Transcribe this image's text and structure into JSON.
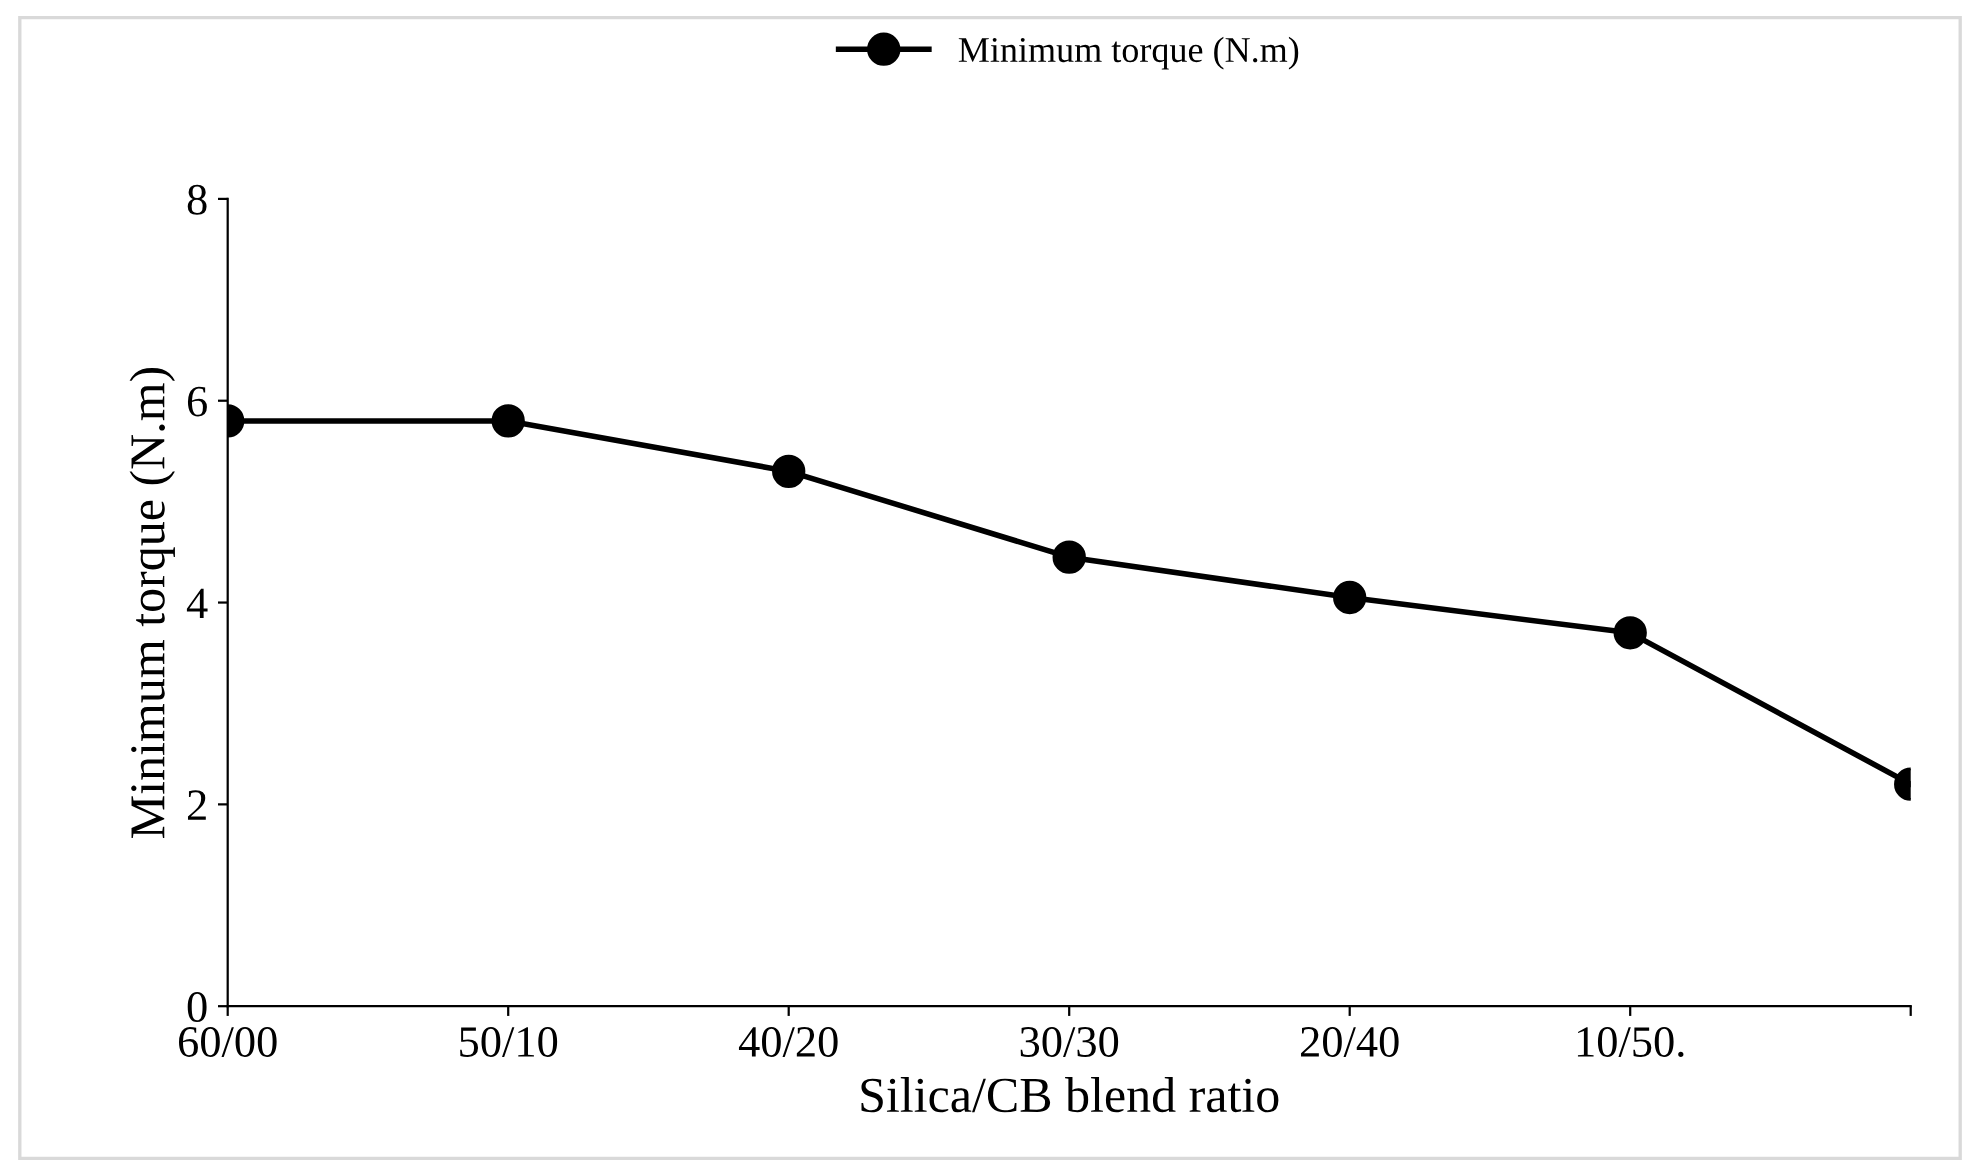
{
  "chart_data": {
    "type": "line",
    "xlabel": "Silica/CB blend ratio",
    "ylabel": "Minimum torque (N.m)",
    "categories": [
      "60/00",
      "50/10",
      "40/20",
      "30/30",
      "20/40",
      "10/50.",
      null
    ],
    "series": [
      {
        "name": "Minimum torque (N.m)",
        "color": "#000000",
        "values": [
          5.8,
          5.8,
          5.3,
          4.45,
          4.05,
          3.7,
          2.2
        ]
      }
    ],
    "ylim": [
      0,
      8
    ],
    "yticks": [
      0,
      2,
      4,
      6,
      8
    ],
    "grid": false,
    "legend": "top",
    "marker": "circle",
    "line_style": "solid"
  }
}
